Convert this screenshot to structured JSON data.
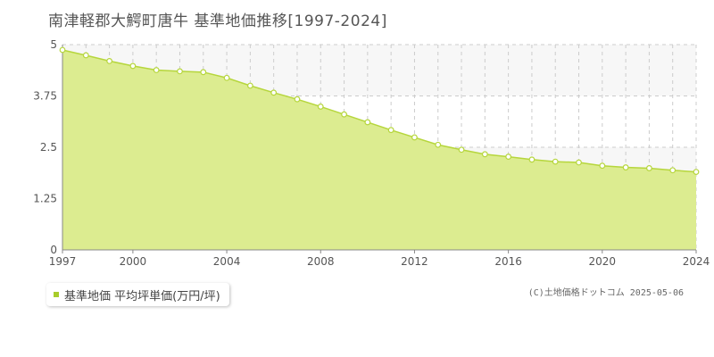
{
  "title": "南津軽郡大鰐町唐牛 基準地価推移[1997-2024]",
  "legend": {
    "label": "基準地価 平均坪単価(万円/坪)"
  },
  "credit": "(C)土地価格ドットコム 2025-05-06",
  "colors": {
    "fill": "#dcec90",
    "line": "#b6d63c",
    "marker_fill": "#ffffff",
    "marker_stroke": "#b6d63c",
    "grid": "#cccccc",
    "swatch": "#a8cc2b",
    "band": "#f7f7f7"
  },
  "chart_data": {
    "type": "area",
    "x": [
      1997,
      1998,
      1999,
      2000,
      2001,
      2002,
      2003,
      2004,
      2005,
      2006,
      2007,
      2008,
      2009,
      2010,
      2011,
      2012,
      2013,
      2014,
      2015,
      2016,
      2017,
      2018,
      2019,
      2020,
      2021,
      2022,
      2023,
      2024
    ],
    "series": [
      {
        "name": "基準地価 平均坪単価(万円/坪)",
        "values": [
          4.87,
          4.74,
          4.6,
          4.48,
          4.38,
          4.35,
          4.33,
          4.19,
          4.0,
          3.83,
          3.67,
          3.49,
          3.3,
          3.11,
          2.92,
          2.74,
          2.56,
          2.44,
          2.33,
          2.27,
          2.2,
          2.15,
          2.13,
          2.05,
          2.01,
          1.99,
          1.94,
          1.9
        ]
      }
    ],
    "xlim": [
      1997,
      2024
    ],
    "ylim": [
      0,
      5
    ],
    "xticks": [
      "1997",
      "2000",
      "2004",
      "2008",
      "2012",
      "2016",
      "2020",
      "2024"
    ],
    "xtick_values": [
      1997,
      2000,
      2004,
      2008,
      2012,
      2016,
      2020,
      2024
    ],
    "yticks": [
      "0",
      "1.25",
      "2.5",
      "3.75",
      "5"
    ],
    "ytick_values": [
      0,
      1.25,
      2.5,
      3.75,
      5
    ],
    "grid": true
  }
}
